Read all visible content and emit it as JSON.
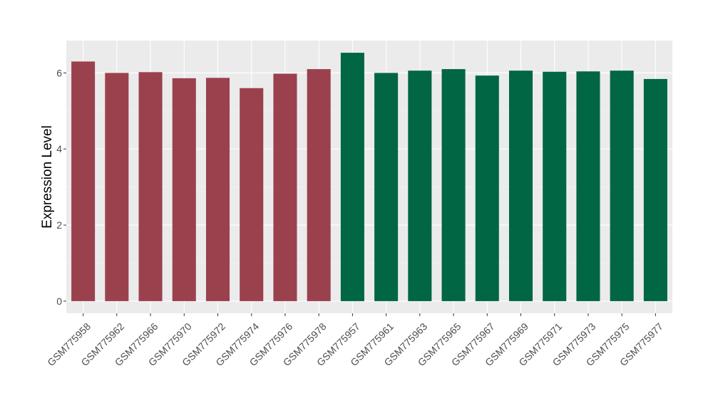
{
  "chart_data": {
    "type": "bar",
    "title": "",
    "xlabel": "",
    "ylabel": "Expression Level",
    "ylim": [
      -0.32,
      6.85
    ],
    "yticks": [
      0,
      2,
      4,
      6
    ],
    "grid": true,
    "categories": [
      "GSM775958",
      "GSM775962",
      "GSM775966",
      "GSM775970",
      "GSM775972",
      "GSM775974",
      "GSM775976",
      "GSM775978",
      "GSM775957",
      "GSM775961",
      "GSM775963",
      "GSM775965",
      "GSM775967",
      "GSM775969",
      "GSM775971",
      "GSM775973",
      "GSM775975",
      "GSM775977"
    ],
    "values": [
      6.3,
      6.0,
      6.02,
      5.86,
      5.87,
      5.6,
      5.98,
      6.1,
      6.53,
      6.0,
      6.06,
      6.1,
      5.93,
      6.06,
      6.03,
      6.04,
      6.06,
      5.84
    ],
    "bar_colors": [
      "#9b414d",
      "#9b414d",
      "#9b414d",
      "#9b414d",
      "#9b414d",
      "#9b414d",
      "#9b414d",
      "#9b414d",
      "#006644",
      "#006644",
      "#006644",
      "#006644",
      "#006644",
      "#006644",
      "#006644",
      "#006644",
      "#006644",
      "#006644"
    ],
    "colors": {
      "panel_background": "#ebebeb",
      "grid_major": "#ffffff",
      "grid_minor": "#f5f5f5"
    }
  }
}
